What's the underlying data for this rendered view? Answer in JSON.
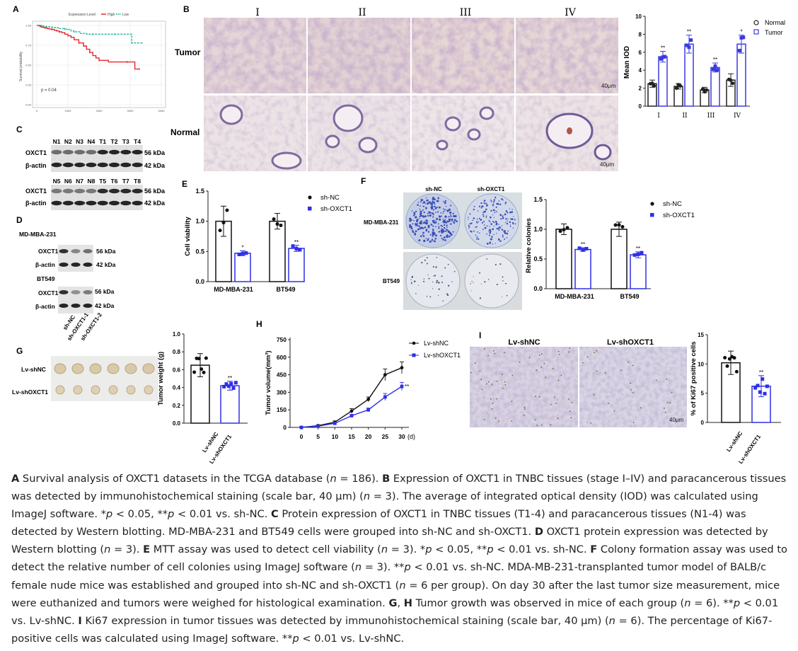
{
  "panels": {
    "A": {
      "letter": "A",
      "legend_title": "Expression Level",
      "legend_items": [
        "High",
        "Low"
      ],
      "ylabel": "Survival probability",
      "pvalue": "p = 0.04",
      "yticks": [
        "0.00",
        "0.25",
        "0.50",
        "0.75",
        "1.00"
      ],
      "xticks": [
        "0",
        "1000",
        "2000",
        "3000",
        "4000"
      ],
      "colors": {
        "high": "#e8262e",
        "low": "#25b39a"
      }
    },
    "B": {
      "letter": "B",
      "stage_labels": [
        "I",
        "II",
        "III",
        "IV"
      ],
      "row_labels": [
        "Tumor",
        "Normal"
      ],
      "scale": "40μm",
      "chart": {
        "ylabel": "Mean IOD",
        "yticks": [
          "0",
          "2",
          "4",
          "6",
          "8",
          "10"
        ],
        "legend": [
          "Normal",
          "Tumor"
        ],
        "sig": [
          "**",
          "**",
          "**",
          "*"
        ]
      }
    },
    "C": {
      "letter": "C",
      "lanes1": [
        "N1",
        "N2",
        "N3",
        "N4",
        "T1",
        "T2",
        "T3",
        "T4"
      ],
      "lanes2": [
        "N5",
        "N6",
        "N7",
        "N8",
        "T5",
        "T6",
        "T7",
        "T8"
      ],
      "proteins": [
        "OXCT1",
        "β-actin"
      ],
      "kda": [
        "56 kDa",
        "42 kDa"
      ]
    },
    "D": {
      "letter": "D",
      "cell_lines": [
        "MD-MBA-231",
        "BT549"
      ],
      "proteins": [
        "OXCT1",
        "β-actin"
      ],
      "kda": [
        "56 kDa",
        "42 kDa"
      ],
      "groups": [
        "sh-NC",
        "sh-OXCT1-1",
        "sh-OXCT1-2"
      ]
    },
    "E": {
      "letter": "E",
      "ylabel": "Cell viability",
      "yticks": [
        "0.0",
        "0.5",
        "1.0",
        "1.5"
      ],
      "legend": [
        "sh-NC",
        "sh-OXCT1"
      ],
      "sig": [
        "*",
        "**"
      ]
    },
    "F": {
      "letter": "F",
      "dish_cols": [
        "sh-NC",
        "sh-OXCT1"
      ],
      "dish_rows": [
        "MD-MBA-231",
        "BT549"
      ],
      "ylabel": "Relative colonies",
      "yticks": [
        "0.0",
        "0.5",
        "1.0",
        "1.5"
      ],
      "legend": [
        "sh-NC",
        "sh-OXCT1"
      ],
      "sig": [
        "**",
        "**"
      ]
    },
    "G": {
      "letter": "G",
      "rows": [
        "Lv-shNC",
        "Lv-shOXCT1"
      ],
      "ylabel": "Tumor weight (g)",
      "yticks": [
        "0.0",
        "0.2",
        "0.4",
        "0.6",
        "0.8",
        "1.0"
      ],
      "groups": [
        "Lv-shNC",
        "Lv-shOXCT1"
      ],
      "sig": "**"
    },
    "H": {
      "letter": "H",
      "ylabel": "Tumor volume(mm³)",
      "yticks": [
        "0",
        "150",
        "300",
        "450",
        "600",
        "750"
      ],
      "xticks": [
        "0",
        "5",
        "10",
        "15",
        "20",
        "25",
        "30"
      ],
      "xunit": "(d)",
      "legend": [
        "Lv-shNC",
        "Lv-shOXCT1"
      ],
      "sig": "**"
    },
    "I": {
      "letter": "I",
      "cols": [
        "Lv-shNC",
        "Lv-shOXCT1"
      ],
      "scale": "40μm",
      "ylabel": "% of Ki67 positive cells",
      "yticks": [
        "0",
        "5",
        "10",
        "15"
      ],
      "groups": [
        "Lv-shNC",
        "Lv-shOXCT1"
      ],
      "sig": "**"
    }
  },
  "chart_data": [
    {
      "id": "A",
      "type": "line",
      "title": "",
      "xlabel": "",
      "ylabel": "Survival probability",
      "xlim": [
        0,
        4000
      ],
      "ylim": [
        0,
        1
      ],
      "series": [
        {
          "name": "High",
          "color": "#e8262e",
          "x": [
            0,
            50,
            100,
            150,
            200,
            260,
            330,
            400,
            480,
            560,
            640,
            720,
            800,
            900,
            1000,
            1100,
            1200,
            1350,
            1500,
            1600,
            1700,
            1800,
            1900,
            2000,
            2300,
            2600,
            2900,
            3100,
            3150,
            3300
          ],
          "y": [
            1.0,
            1.0,
            0.99,
            0.98,
            0.975,
            0.97,
            0.96,
            0.955,
            0.95,
            0.94,
            0.93,
            0.92,
            0.91,
            0.89,
            0.87,
            0.85,
            0.82,
            0.78,
            0.74,
            0.7,
            0.66,
            0.62,
            0.59,
            0.56,
            0.54,
            0.54,
            0.54,
            0.54,
            0.45,
            0.45
          ]
        },
        {
          "name": "Low",
          "color": "#25b39a",
          "x": [
            0,
            100,
            200,
            300,
            400,
            500,
            600,
            700,
            900,
            1000,
            1100,
            1200,
            1400,
            1600,
            1800,
            2000,
            2200,
            2500,
            2800,
            3000,
            3050,
            3400
          ],
          "y": [
            1.0,
            1.0,
            0.99,
            0.985,
            0.98,
            0.975,
            0.97,
            0.96,
            0.955,
            0.95,
            0.93,
            0.92,
            0.9,
            0.89,
            0.89,
            0.89,
            0.89,
            0.89,
            0.89,
            0.89,
            0.78,
            0.78
          ]
        }
      ],
      "annotations": [
        "p = 0.04"
      ]
    },
    {
      "id": "B",
      "type": "bar",
      "ylabel": "Mean IOD",
      "ylim": [
        0,
        10
      ],
      "categories": [
        "I",
        "II",
        "III",
        "IV"
      ],
      "series": [
        {
          "name": "Normal",
          "values": [
            2.5,
            2.2,
            1.8,
            2.9
          ],
          "errors": [
            0.4,
            0.3,
            0.3,
            0.7
          ]
        },
        {
          "name": "Tumor",
          "values": [
            5.5,
            6.9,
            4.3,
            6.9
          ],
          "errors": [
            0.6,
            1.0,
            0.5,
            1.0
          ]
        }
      ]
    },
    {
      "id": "E",
      "type": "bar",
      "ylabel": "Cell viability",
      "ylim": [
        0,
        1.5
      ],
      "categories": [
        "MD-MBA-231",
        "BT549"
      ],
      "series": [
        {
          "name": "sh-NC",
          "values": [
            1.0,
            1.0
          ],
          "errors": [
            0.25,
            0.13
          ]
        },
        {
          "name": "sh-OXCT1",
          "values": [
            0.47,
            0.55
          ],
          "errors": [
            0.04,
            0.05
          ]
        }
      ]
    },
    {
      "id": "F",
      "type": "bar",
      "ylabel": "Relative colonies",
      "ylim": [
        0,
        1.5
      ],
      "categories": [
        "MD-MBA-231",
        "BT549"
      ],
      "series": [
        {
          "name": "sh-NC",
          "values": [
            1.0,
            1.0
          ],
          "errors": [
            0.09,
            0.12
          ]
        },
        {
          "name": "sh-OXCT1",
          "values": [
            0.66,
            0.57
          ],
          "errors": [
            0.03,
            0.05
          ]
        }
      ]
    },
    {
      "id": "G",
      "type": "bar",
      "ylabel": "Tumor weight (g)",
      "ylim": [
        0,
        1.0
      ],
      "categories": [
        "Lv-shNC",
        "Lv-shOXCT1"
      ],
      "values": [
        0.65,
        0.42
      ],
      "errors": [
        0.13,
        0.05
      ]
    },
    {
      "id": "H",
      "type": "line",
      "xlabel": "",
      "ylabel": "Tumor volume(mm³)",
      "xlim": [
        0,
        30
      ],
      "ylim": [
        0,
        750
      ],
      "x": [
        0,
        5,
        10,
        15,
        20,
        25,
        30
      ],
      "series": [
        {
          "name": "Lv-shNC",
          "values": [
            0,
            15,
            45,
            140,
            240,
            450,
            510
          ],
          "errors": [
            5,
            8,
            10,
            20,
            20,
            50,
            50
          ]
        },
        {
          "name": "Lv-shOXCT1",
          "values": [
            0,
            10,
            35,
            100,
            150,
            260,
            350
          ],
          "errors": [
            4,
            6,
            8,
            10,
            15,
            30,
            35
          ]
        }
      ]
    },
    {
      "id": "I",
      "type": "bar",
      "ylabel": "% of Ki67 positive cells",
      "ylim": [
        0,
        15
      ],
      "categories": [
        "Lv-shNC",
        "Lv-shOXCT1"
      ],
      "values": [
        10.2,
        6.2
      ],
      "errors": [
        2.0,
        1.8
      ]
    }
  ],
  "caption": [
    {
      "b": "A"
    },
    {
      "t": " Survival analysis of OXCT1 datasets in the TCGA database ("
    },
    {
      "i": "n"
    },
    {
      "t": " = 186). "
    },
    {
      "b": "B"
    },
    {
      "t": " Expression of OXCT1 in TNBC tissues (stage I–IV) and paracancerous tissues was detected by immunohistochemical staining (scale bar, 40 μm) ("
    },
    {
      "i": "n"
    },
    {
      "t": " = 3). The average of integrated optical density (IOD) was calculated using ImageJ software. *"
    },
    {
      "i": "p"
    },
    {
      "t": " < 0.05, **"
    },
    {
      "i": "p"
    },
    {
      "t": " < 0.01 vs. sh-NC. "
    },
    {
      "b": "C"
    },
    {
      "t": " Protein expression of OXCT1 in TNBC tissues (T1-4) and paracancerous tissues (N1-4) was detected by Western blotting. MD-MBA-231 and BT549 cells were grouped into sh-NC and sh-OXCT1. "
    },
    {
      "b": "D"
    },
    {
      "t": " OXCT1 protein expression was detected by Western blotting ("
    },
    {
      "i": "n"
    },
    {
      "t": " = 3). "
    },
    {
      "b": "E"
    },
    {
      "t": " MTT assay was used to detect cell viability ("
    },
    {
      "i": "n"
    },
    {
      "t": " = 3). *"
    },
    {
      "i": "p"
    },
    {
      "t": " < 0.05, **"
    },
    {
      "i": "p"
    },
    {
      "t": " < 0.01 vs. sh-NC. "
    },
    {
      "b": "F"
    },
    {
      "t": " Colony formation assay was used to detect the relative number of cell colonies using ImageJ software ("
    },
    {
      "i": "n"
    },
    {
      "t": " = 3). **"
    },
    {
      "i": "p"
    },
    {
      "t": " < 0.01 vs. sh-NC. MDA-MB-231-transplanted tumor model of BALB/c female nude mice was established and grouped into sh-NC and sh-OXCT1 ("
    },
    {
      "i": "n"
    },
    {
      "t": " = 6 per group). On day 30 after the last tumor size measurement, mice were euthanized and tumors were weighed for histological examination. "
    },
    {
      "b": "G"
    },
    {
      "t": ", "
    },
    {
      "b": "H"
    },
    {
      "t": " Tumor growth was observed in mice of each group ("
    },
    {
      "i": "n"
    },
    {
      "t": " = 6). **"
    },
    {
      "i": "p"
    },
    {
      "t": " < 0.01 vs. Lv-shNC. "
    },
    {
      "b": "I"
    },
    {
      "t": " Ki67 expression in tumor tissues was detected by immunohistochemical staining (scale bar, 40 μm) ("
    },
    {
      "i": "n"
    },
    {
      "t": " = 6). The percentage of Ki67-positive cells was calculated using ImageJ software. **"
    },
    {
      "i": "p"
    },
    {
      "t": " < 0.01 vs. Lv-shNC."
    }
  ]
}
